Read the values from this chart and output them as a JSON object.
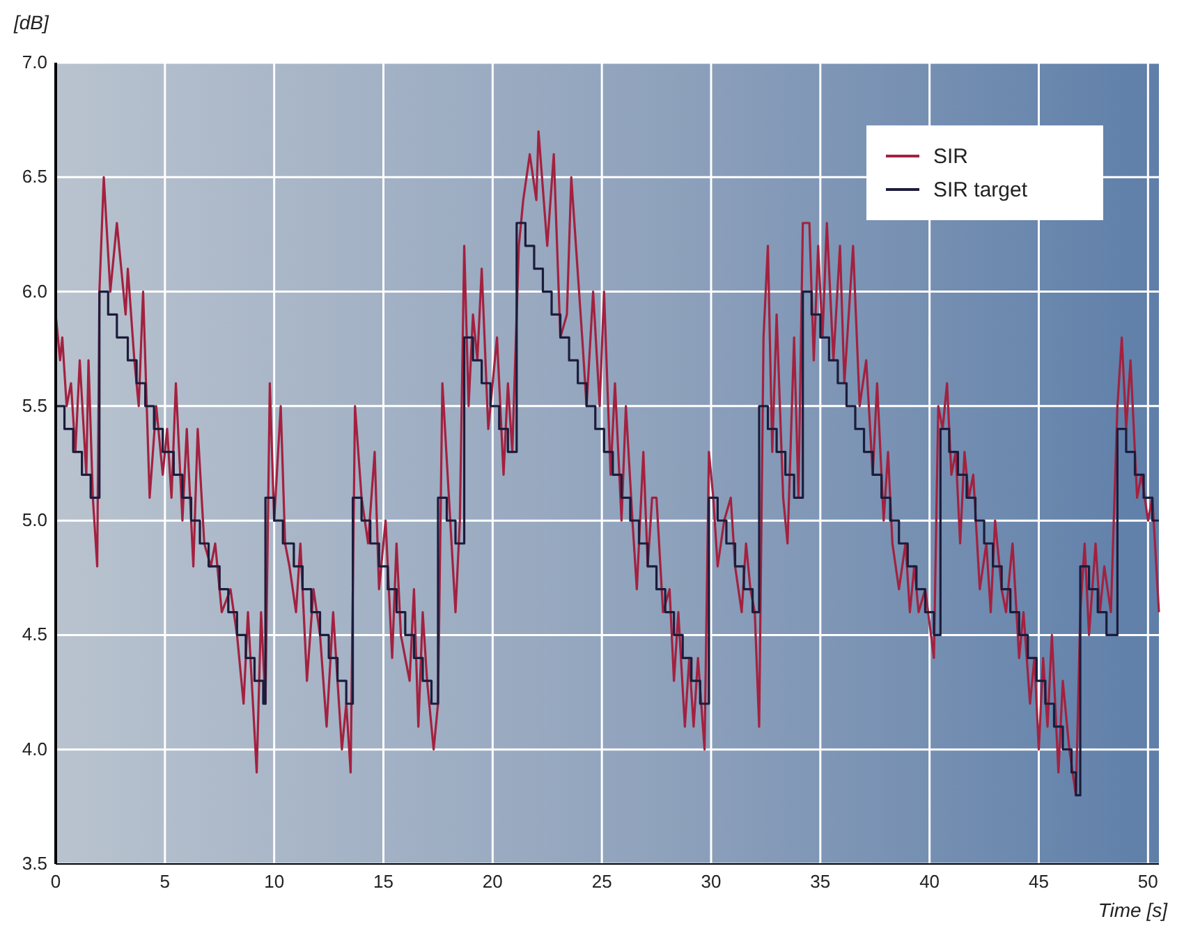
{
  "chart_data": {
    "type": "line",
    "xlabel": "Time [s]",
    "ylabel": "[dB]",
    "xlim": [
      0,
      50.5
    ],
    "ylim": [
      3.5,
      7.0
    ],
    "xticks": [
      0,
      5,
      10,
      15,
      20,
      25,
      30,
      35,
      40,
      45,
      50
    ],
    "yticks": [
      {
        "value": 3.5,
        "label": "3.5"
      },
      {
        "value": 4,
        "label": "4.0"
      },
      {
        "value": 4.5,
        "label": "4.5"
      },
      {
        "value": 5,
        "label": "5.0"
      },
      {
        "value": 5.5,
        "label": "5.5"
      },
      {
        "value": 6,
        "label": "6.0"
      },
      {
        "value": 6.5,
        "label": "6.5"
      },
      {
        "value": 7,
        "label": "7.0"
      }
    ],
    "grid": true,
    "legend": "top right",
    "line_style": "solid",
    "marker": "none",
    "series": [
      {
        "name": "SIR",
        "color": "#a3213f",
        "x": [
          0,
          0.2,
          0.3,
          0.5,
          0.7,
          0.9,
          1.1,
          1.4,
          1.5,
          1.7,
          1.9,
          2.0,
          2.2,
          2.5,
          2.8,
          3.0,
          3.2,
          3.3,
          3.6,
          3.8,
          4.0,
          4.3,
          4.6,
          4.9,
          5.1,
          5.3,
          5.5,
          5.8,
          6.0,
          6.3,
          6.5,
          6.8,
          7.1,
          7.3,
          7.6,
          8.0,
          8.3,
          8.6,
          8.8,
          9.2,
          9.4,
          9.6,
          9.8,
          10.0,
          10.3,
          10.5,
          10.7,
          11.0,
          11.2,
          11.5,
          11.8,
          12.1,
          12.4,
          12.7,
          13.1,
          13.3,
          13.5,
          13.7,
          14.0,
          14.3,
          14.6,
          14.8,
          15.1,
          15.4,
          15.6,
          15.8,
          16.2,
          16.4,
          16.6,
          16.8,
          17.0,
          17.3,
          17.5,
          17.7,
          18.0,
          18.3,
          18.5,
          18.7,
          18.9,
          19.1,
          19.3,
          19.5,
          19.8,
          20.2,
          20.5,
          20.7,
          20.9,
          21.2,
          21.4,
          21.7,
          22.0,
          22.1,
          22.5,
          22.8,
          23.1,
          23.4,
          23.6,
          24.1,
          24.3,
          24.6,
          24.9,
          25.1,
          25.4,
          25.6,
          25.9,
          26.1,
          26.4,
          26.6,
          26.9,
          27.1,
          27.3,
          27.5,
          27.8,
          28.1,
          28.3,
          28.5,
          28.8,
          29.0,
          29.2,
          29.4,
          29.7,
          29.9,
          30.1,
          30.3,
          30.6,
          30.9,
          31.1,
          31.4,
          31.6,
          31.8,
          32.0,
          32.2,
          32.4,
          32.6,
          32.8,
          33.0,
          33.3,
          33.5,
          33.8,
          34.0,
          34.2,
          34.5,
          34.7,
          34.9,
          35.1,
          35.3,
          35.6,
          35.9,
          36.1,
          36.5,
          36.8,
          37.1,
          37.4,
          37.6,
          37.9,
          38.1,
          38.3,
          38.6,
          38.9,
          39.1,
          39.3,
          39.5,
          39.8,
          40.2,
          40.4,
          40.6,
          40.8,
          41.0,
          41.2,
          41.4,
          41.6,
          41.8,
          42.0,
          42.3,
          42.6,
          42.8,
          43.0,
          43.3,
          43.5,
          43.8,
          44.1,
          44.3,
          44.6,
          44.8,
          45.0,
          45.2,
          45.4,
          45.6,
          45.9,
          46.1,
          46.4,
          46.7,
          46.9,
          47.1,
          47.3,
          47.6,
          47.8,
          48.0,
          48.3,
          48.6,
          48.8,
          49.0,
          49.2,
          49.5,
          49.7,
          50.0,
          50.2,
          50.5
        ],
        "values": [
          5.9,
          5.7,
          5.8,
          5.5,
          5.6,
          5.3,
          5.7,
          5.2,
          5.7,
          5.1,
          4.8,
          6.0,
          6.5,
          6.0,
          6.3,
          6.1,
          5.9,
          6.1,
          5.7,
          5.5,
          6.0,
          5.1,
          5.5,
          5.2,
          5.4,
          5.1,
          5.6,
          5.0,
          5.4,
          4.8,
          5.4,
          4.9,
          4.8,
          4.9,
          4.6,
          4.7,
          4.5,
          4.2,
          4.6,
          3.9,
          4.6,
          4.2,
          5.6,
          5.0,
          5.5,
          4.9,
          4.8,
          4.6,
          4.9,
          4.3,
          4.7,
          4.5,
          4.1,
          4.6,
          4.0,
          4.2,
          3.9,
          5.5,
          5.1,
          4.9,
          5.3,
          4.7,
          5.0,
          4.4,
          4.9,
          4.5,
          4.3,
          4.7,
          4.1,
          4.6,
          4.3,
          4.0,
          4.2,
          5.6,
          5.1,
          4.6,
          5.0,
          6.2,
          5.5,
          5.9,
          5.7,
          6.1,
          5.4,
          5.8,
          5.2,
          5.6,
          5.3,
          6.2,
          6.4,
          6.6,
          6.4,
          6.7,
          6.2,
          6.6,
          5.8,
          5.9,
          6.5,
          5.8,
          5.5,
          6.0,
          5.5,
          6.0,
          5.2,
          5.6,
          5.0,
          5.5,
          5.0,
          4.7,
          5.3,
          4.8,
          5.1,
          5.1,
          4.6,
          4.7,
          4.3,
          4.6,
          4.1,
          4.4,
          4.1,
          4.4,
          4.0,
          5.3,
          5.1,
          4.8,
          5.0,
          5.1,
          4.8,
          4.6,
          4.9,
          4.7,
          4.6,
          4.1,
          5.8,
          6.2,
          5.3,
          5.9,
          5.1,
          4.9,
          5.8,
          5.1,
          6.3,
          6.3,
          5.7,
          6.2,
          5.8,
          6.3,
          5.7,
          6.2,
          5.6,
          6.2,
          5.5,
          5.7,
          5.2,
          5.6,
          5.0,
          5.3,
          4.9,
          4.7,
          4.9,
          4.6,
          4.8,
          4.6,
          4.7,
          4.4,
          5.5,
          5.4,
          5.6,
          5.2,
          5.3,
          4.9,
          5.3,
          5.1,
          5.2,
          4.7,
          4.9,
          4.6,
          5.0,
          4.7,
          4.6,
          4.9,
          4.4,
          4.6,
          4.2,
          4.4,
          4.0,
          4.4,
          4.1,
          4.5,
          3.9,
          4.3,
          4.0,
          3.8,
          4.6,
          4.9,
          4.5,
          4.9,
          4.6,
          4.8,
          4.6,
          5.5,
          5.8,
          5.4,
          5.7,
          5.1,
          5.2,
          5.0,
          5.1,
          4.6
        ]
      },
      {
        "name": "SIR target",
        "color": "#1c1c3c",
        "type": "step",
        "x": [
          0,
          0.4,
          0.8,
          1.2,
          1.6,
          2.0,
          2.4,
          2.8,
          3.3,
          3.7,
          4.1,
          4.5,
          4.9,
          5.4,
          5.8,
          6.2,
          6.6,
          7.0,
          7.5,
          7.9,
          8.3,
          8.7,
          9.1,
          9.5,
          9.6,
          10.0,
          10.4,
          10.9,
          11.3,
          11.7,
          12.1,
          12.5,
          12.9,
          13.3,
          13.6,
          14.0,
          14.4,
          14.8,
          15.2,
          15.6,
          16.0,
          16.4,
          16.8,
          17.2,
          17.5,
          17.9,
          18.3,
          18.7,
          19.1,
          19.5,
          19.9,
          20.3,
          20.7,
          21.1,
          21.5,
          21.9,
          22.3,
          22.7,
          23.1,
          23.5,
          23.9,
          24.3,
          24.7,
          25.1,
          25.5,
          25.9,
          26.3,
          26.7,
          27.1,
          27.5,
          27.9,
          28.3,
          28.7,
          29.1,
          29.5,
          29.9,
          30.3,
          30.7,
          31.1,
          31.5,
          31.9,
          32.2,
          32.6,
          33.0,
          33.4,
          33.8,
          34.2,
          34.6,
          35.0,
          35.4,
          35.8,
          36.2,
          36.6,
          37.0,
          37.4,
          37.8,
          38.2,
          38.6,
          39.0,
          39.4,
          39.8,
          40.2,
          40.5,
          40.9,
          41.3,
          41.7,
          42.1,
          42.5,
          42.9,
          43.3,
          43.7,
          44.1,
          44.5,
          44.9,
          45.3,
          45.7,
          46.1,
          46.5,
          46.7,
          46.9,
          47.3,
          47.7,
          48.1,
          48.6,
          49.0,
          49.4,
          49.8,
          50.2,
          50.5
        ],
        "values": [
          5.5,
          5.4,
          5.3,
          5.2,
          5.1,
          6.0,
          5.9,
          5.8,
          5.7,
          5.6,
          5.5,
          5.4,
          5.3,
          5.2,
          5.1,
          5.0,
          4.9,
          4.8,
          4.7,
          4.6,
          4.5,
          4.4,
          4.3,
          4.2,
          5.1,
          5.0,
          4.9,
          4.8,
          4.7,
          4.6,
          4.5,
          4.4,
          4.3,
          4.2,
          5.1,
          5.0,
          4.9,
          4.8,
          4.7,
          4.6,
          4.5,
          4.4,
          4.3,
          4.2,
          5.1,
          5.0,
          4.9,
          5.8,
          5.7,
          5.6,
          5.5,
          5.4,
          5.3,
          6.3,
          6.2,
          6.1,
          6.0,
          5.9,
          5.8,
          5.7,
          5.6,
          5.5,
          5.4,
          5.3,
          5.2,
          5.1,
          5.0,
          4.9,
          4.8,
          4.7,
          4.6,
          4.5,
          4.4,
          4.3,
          4.2,
          5.1,
          5.0,
          4.9,
          4.8,
          4.7,
          4.6,
          5.5,
          5.4,
          5.3,
          5.2,
          5.1,
          6.0,
          5.9,
          5.8,
          5.7,
          5.6,
          5.5,
          5.4,
          5.3,
          5.2,
          5.1,
          5.0,
          4.9,
          4.8,
          4.7,
          4.6,
          4.5,
          5.4,
          5.3,
          5.2,
          5.1,
          5.0,
          4.9,
          4.8,
          4.7,
          4.6,
          4.5,
          4.4,
          4.3,
          4.2,
          4.1,
          4.0,
          3.9,
          3.8,
          4.8,
          4.7,
          4.6,
          4.5,
          5.4,
          5.3,
          5.2,
          5.1,
          5.0,
          5.0
        ]
      }
    ]
  }
}
